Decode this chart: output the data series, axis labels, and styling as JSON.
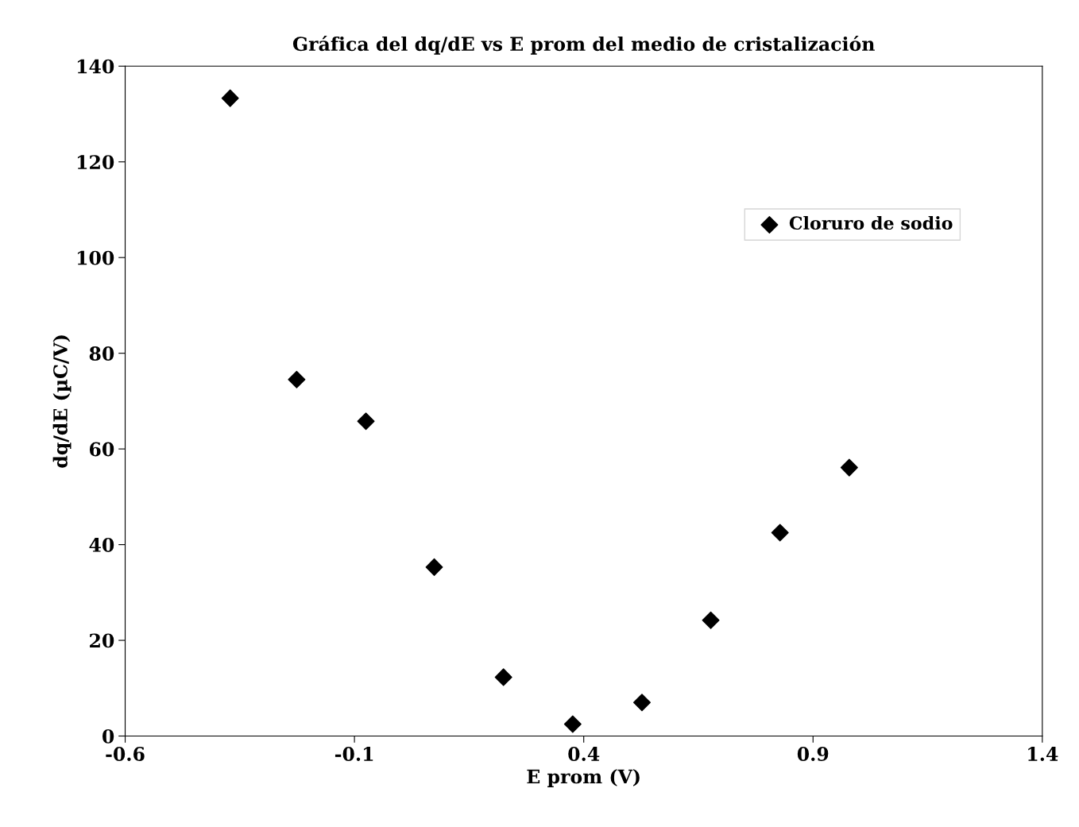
{
  "chart_data": {
    "type": "scatter",
    "title": "Gráfica del dq/dE vs E prom del medio de cristalización",
    "xlabel": "E prom (V)",
    "ylabel": "dq/dE (µC/V)",
    "x": [
      -0.371,
      -0.226,
      -0.075,
      0.074,
      0.225,
      0.376,
      0.527,
      0.677,
      0.828,
      0.979
    ],
    "series": [
      {
        "name": "Cloruro de sodio",
        "color": "#000000",
        "values": [
          133.3,
          74.5,
          65.8,
          35.3,
          12.3,
          2.5,
          7.0,
          24.2,
          42.5,
          56.1
        ]
      }
    ],
    "xlim": [
      -0.6,
      1.4
    ],
    "xticks": [
      -0.6,
      -0.1,
      0.4,
      0.9,
      1.4
    ],
    "ylim": [
      0,
      140
    ],
    "yticks": [
      0,
      20,
      40,
      60,
      80,
      100,
      120,
      140
    ],
    "marker": "diamond",
    "grid": false,
    "legend": "top right"
  }
}
